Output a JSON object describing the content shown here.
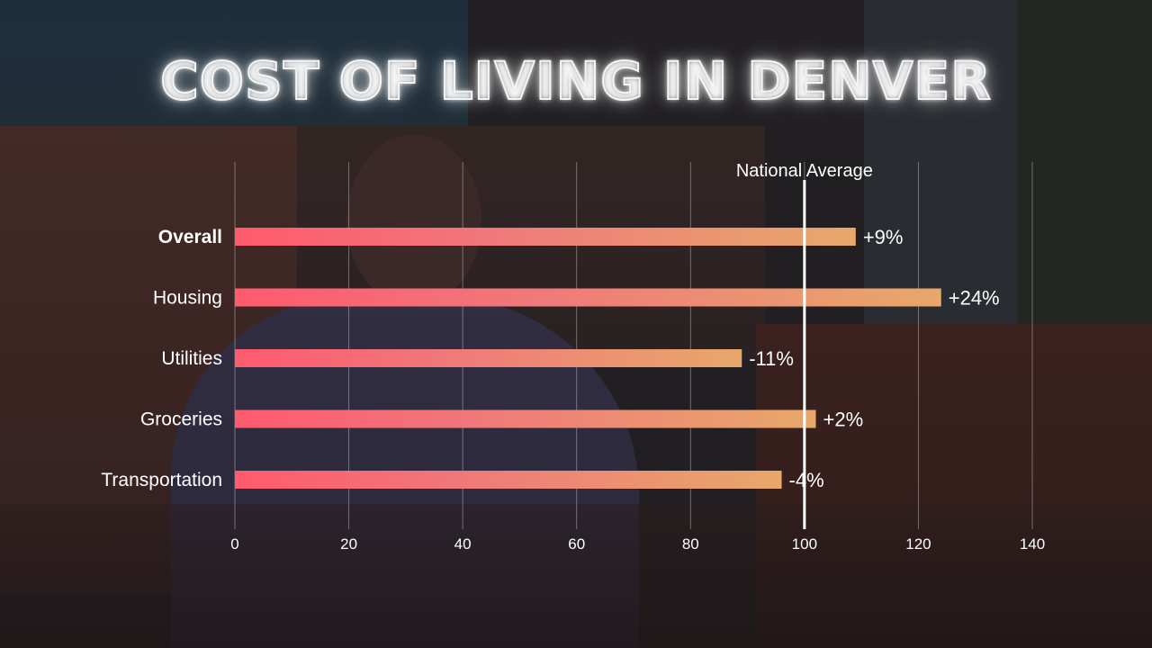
{
  "chart_data": {
    "type": "bar",
    "orientation": "horizontal",
    "title": "COST OF LIVING IN DENVER",
    "categories": [
      "Overall",
      "Housing",
      "Utilities",
      "Groceries",
      "Transportation"
    ],
    "values": [
      109,
      124,
      89,
      102,
      96
    ],
    "value_labels": [
      "+9%",
      "+24%",
      "-11%",
      "+2%",
      "-4%"
    ],
    "xlim": [
      0,
      140
    ],
    "xticks": [
      0,
      20,
      40,
      60,
      80,
      100,
      120,
      140
    ],
    "reference_line": {
      "value": 100,
      "label": "National Average"
    },
    "grid": true,
    "bar_colors": [
      "#ff5a6e",
      "#e8a86a"
    ]
  }
}
